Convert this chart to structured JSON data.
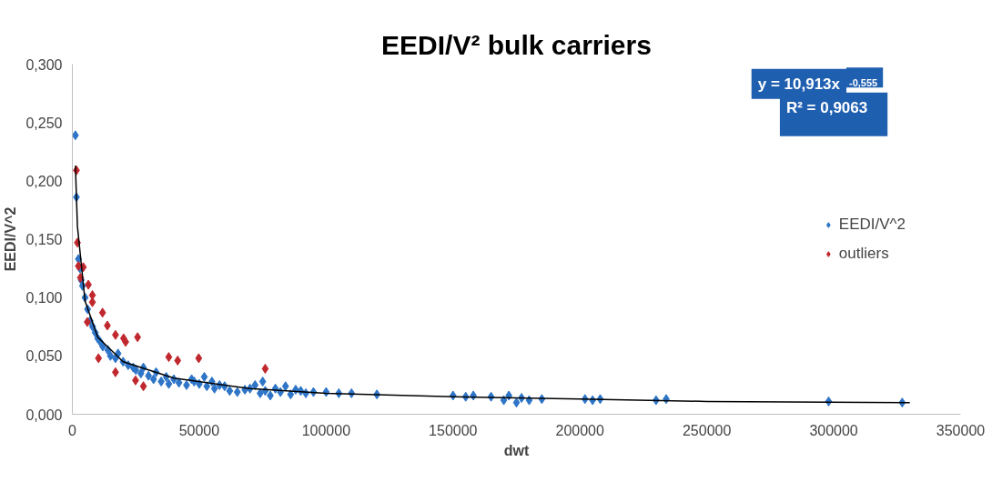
{
  "chart_data": {
    "type": "scatter",
    "title": "EEDI/V² bulk carriers",
    "xlabel": "dwt",
    "ylabel": "EEDI/V^2",
    "xlim": [
      0,
      350000
    ],
    "xticks": [
      0,
      50000,
      100000,
      150000,
      200000,
      250000,
      300000,
      350000
    ],
    "ylim": [
      0,
      0.3
    ],
    "yticks": [
      {
        "value": 0,
        "label": "0,000"
      },
      {
        "value": 0.05,
        "label": "0,050"
      },
      {
        "value": 0.1,
        "label": "0,100"
      },
      {
        "value": 0.15,
        "label": "0,150"
      },
      {
        "value": 0.2,
        "label": "0,200"
      },
      {
        "value": 0.25,
        "label": "0,250"
      },
      {
        "value": 0.3,
        "label": "0,300"
      }
    ],
    "grid": false,
    "legend": "right",
    "marker": "diamond",
    "annotations": [
      "y = 10,913x$^{-0,555}$",
      "R² = 0,9063"
    ],
    "series": [
      {
        "name": "EEDI/V^2",
        "color": "#2e75c8",
        "x": [
          1200,
          1600,
          2400,
          3000,
          3500,
          4000,
          5000,
          6000,
          7000,
          8000,
          9000,
          10000,
          11000,
          12000,
          14000,
          15000,
          17000,
          18000,
          20000,
          22000,
          24000,
          25000,
          27000,
          28000,
          30000,
          32000,
          33000,
          35000,
          37000,
          38000,
          40000,
          42000,
          45000,
          47000,
          48000,
          50000,
          52000,
          53000,
          55000,
          56000,
          58000,
          60000,
          62000,
          65000,
          68000,
          70000,
          72000,
          74000,
          75000,
          76000,
          78000,
          80000,
          82000,
          84000,
          86000,
          88000,
          90000,
          92000,
          95000,
          100000,
          105000,
          110000,
          120000,
          150000,
          155000,
          158000,
          165000,
          170000,
          172000,
          175000,
          177000,
          180000,
          185000,
          202000,
          205000,
          208000,
          230000,
          234000,
          298000,
          327000
        ],
        "values": [
          0.239,
          0.186,
          0.133,
          0.125,
          0.115,
          0.11,
          0.1,
          0.09,
          0.08,
          0.075,
          0.07,
          0.065,
          0.062,
          0.058,
          0.055,
          0.05,
          0.048,
          0.052,
          0.045,
          0.042,
          0.04,
          0.038,
          0.035,
          0.04,
          0.033,
          0.03,
          0.036,
          0.028,
          0.032,
          0.026,
          0.03,
          0.027,
          0.025,
          0.03,
          0.028,
          0.026,
          0.032,
          0.024,
          0.028,
          0.022,
          0.025,
          0.024,
          0.02,
          0.019,
          0.021,
          0.022,
          0.025,
          0.018,
          0.028,
          0.02,
          0.016,
          0.022,
          0.019,
          0.024,
          0.017,
          0.021,
          0.02,
          0.018,
          0.019,
          0.019,
          0.018,
          0.018,
          0.017,
          0.016,
          0.015,
          0.016,
          0.015,
          0.012,
          0.016,
          0.01,
          0.014,
          0.012,
          0.013,
          0.013,
          0.012,
          0.013,
          0.012,
          0.013,
          0.011,
          0.01
        ]
      },
      {
        "name": "outliers",
        "color": "#c0282d",
        "x": [
          1600,
          2000,
          2400,
          4300,
          3200,
          6300,
          7900,
          7900,
          5900,
          11900,
          13800,
          10300,
          17000,
          21000,
          20200,
          25700,
          17000,
          24900,
          28000,
          38000,
          41500,
          49800,
          76000
        ],
        "values": [
          0.209,
          0.147,
          0.127,
          0.126,
          0.117,
          0.111,
          0.102,
          0.096,
          0.079,
          0.087,
          0.076,
          0.048,
          0.068,
          0.062,
          0.065,
          0.066,
          0.036,
          0.029,
          0.024,
          0.049,
          0.046,
          0.048,
          0.039
        ]
      },
      {
        "type": "line",
        "color": "#000000",
        "marker": "none",
        "x": [
          1200,
          2000,
          5000,
          10000,
          20000,
          40000,
          70000,
          100000,
          150000,
          200000,
          250000,
          330000
        ],
        "values": [
          0.213,
          0.161,
          0.097,
          0.066,
          0.045,
          0.031,
          0.022,
          0.018,
          0.015,
          0.013,
          0.011,
          0.01
        ]
      }
    ]
  }
}
